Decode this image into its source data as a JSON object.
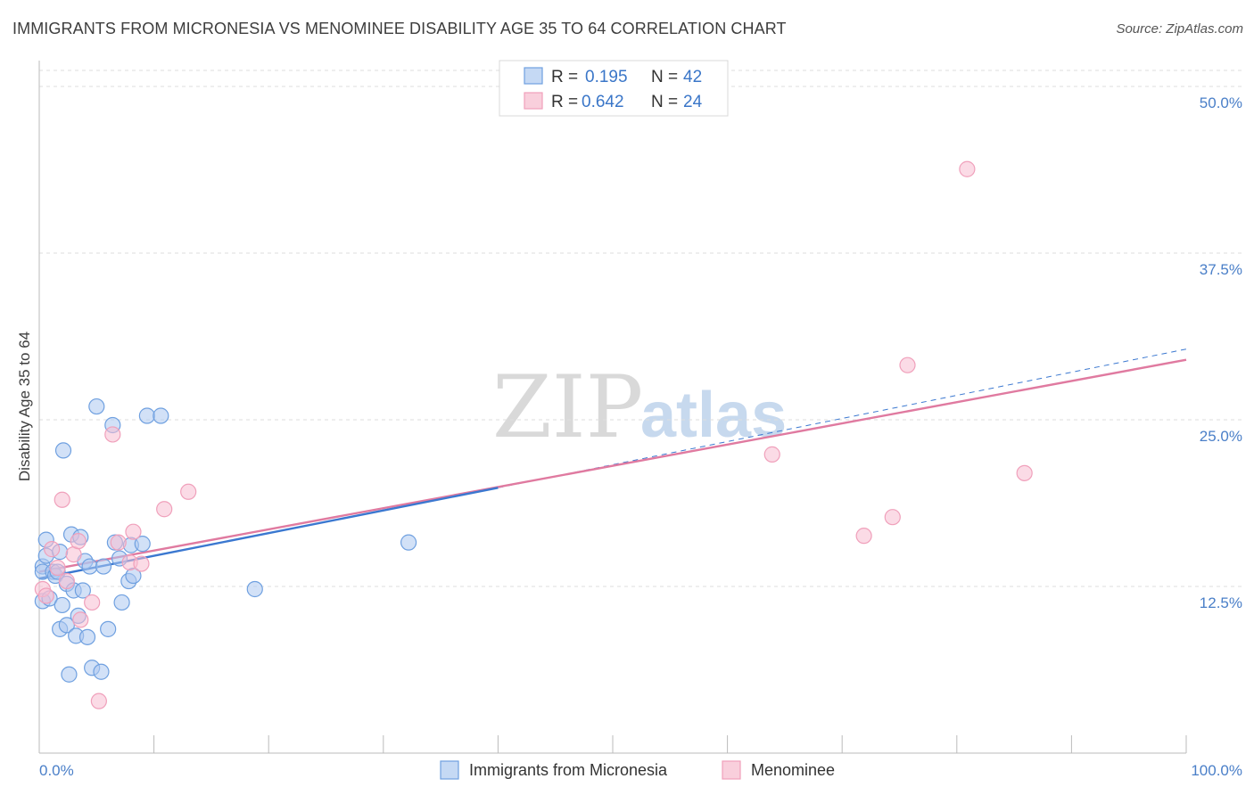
{
  "title": "IMMIGRANTS FROM MICRONESIA VS MENOMINEE DISABILITY AGE 35 TO 64 CORRELATION CHART",
  "source": "Source: ZipAtlas.com",
  "watermark": {
    "zip": "ZIP",
    "atlas": "atlas"
  },
  "legend": {
    "r_label": "R =",
    "n_label": "N =",
    "rows": [
      {
        "r": "0.195",
        "n": "42"
      },
      {
        "r": "0.642",
        "n": "24"
      }
    ]
  },
  "chart_data": {
    "type": "scatter",
    "title": "IMMIGRANTS FROM MICRONESIA VS MENOMINEE DISABILITY AGE 35 TO 64 CORRELATION CHART",
    "xlabel": "",
    "ylabel": "Disability Age 35 to 64",
    "xlim": [
      0,
      100
    ],
    "ylim": [
      0,
      50
    ],
    "x_tick_labels": [
      "0.0%",
      "100.0%"
    ],
    "y_ticks": [
      12.5,
      25.0,
      37.5,
      50.0
    ],
    "y_tick_labels": [
      "12.5%",
      "25.0%",
      "37.5%",
      "50.0%"
    ],
    "grid": true,
    "legend_position": "top-center",
    "colors": {
      "micronesia": "#6fa0e0",
      "menominee": "#f0a0bb",
      "micronesia_line": "#3b78d0",
      "menominee_line": "#e07aa0"
    },
    "series": [
      {
        "name": "Immigrants from Micronesia",
        "r": 0.195,
        "n": 42,
        "trend": {
          "x0": 0,
          "y0": 13.1,
          "x1": 40,
          "y1": 19.9,
          "x_dash_end": 100,
          "y_dash_end": 30.3
        },
        "points": [
          [
            0.3,
            14.0
          ],
          [
            0.3,
            13.6
          ],
          [
            0.3,
            11.4
          ],
          [
            0.6,
            16.0
          ],
          [
            0.6,
            14.8
          ],
          [
            0.9,
            11.6
          ],
          [
            1.2,
            13.6
          ],
          [
            1.4,
            13.3
          ],
          [
            1.6,
            13.6
          ],
          [
            1.8,
            15.1
          ],
          [
            1.8,
            9.3
          ],
          [
            2.0,
            11.1
          ],
          [
            2.1,
            22.7
          ],
          [
            2.4,
            12.7
          ],
          [
            2.4,
            9.6
          ],
          [
            2.6,
            5.9
          ],
          [
            2.8,
            16.4
          ],
          [
            3.0,
            12.2
          ],
          [
            3.2,
            8.8
          ],
          [
            3.4,
            10.3
          ],
          [
            3.6,
            16.2
          ],
          [
            3.8,
            12.2
          ],
          [
            4.0,
            14.4
          ],
          [
            4.2,
            8.7
          ],
          [
            4.4,
            14.0
          ],
          [
            4.6,
            6.4
          ],
          [
            5.0,
            26.0
          ],
          [
            5.4,
            6.1
          ],
          [
            5.6,
            14.0
          ],
          [
            6.0,
            9.3
          ],
          [
            6.4,
            24.6
          ],
          [
            6.6,
            15.8
          ],
          [
            7.0,
            14.6
          ],
          [
            7.2,
            11.3
          ],
          [
            7.8,
            12.9
          ],
          [
            8.0,
            15.6
          ],
          [
            8.2,
            13.3
          ],
          [
            9.0,
            15.7
          ],
          [
            9.4,
            25.3
          ],
          [
            10.6,
            25.3
          ],
          [
            18.8,
            12.3
          ],
          [
            32.2,
            15.8
          ]
        ]
      },
      {
        "name": "Menominee",
        "r": 0.642,
        "n": 24,
        "trend": {
          "x0": 0,
          "y0": 13.6,
          "x1": 100,
          "y1": 29.5
        },
        "points": [
          [
            0.3,
            12.3
          ],
          [
            0.6,
            11.8
          ],
          [
            1.1,
            15.3
          ],
          [
            1.6,
            13.9
          ],
          [
            2.0,
            19.0
          ],
          [
            2.4,
            12.9
          ],
          [
            3.0,
            14.9
          ],
          [
            3.4,
            15.9
          ],
          [
            3.6,
            10.0
          ],
          [
            4.6,
            11.3
          ],
          [
            6.4,
            23.9
          ],
          [
            6.9,
            15.8
          ],
          [
            7.9,
            14.3
          ],
          [
            8.2,
            16.6
          ],
          [
            8.9,
            14.2
          ],
          [
            10.9,
            18.3
          ],
          [
            13.0,
            19.6
          ],
          [
            5.2,
            3.9
          ],
          [
            63.9,
            22.4
          ],
          [
            71.9,
            16.3
          ],
          [
            74.4,
            17.7
          ],
          [
            75.7,
            29.1
          ],
          [
            80.9,
            43.8
          ],
          [
            85.9,
            21.0
          ]
        ]
      }
    ]
  }
}
